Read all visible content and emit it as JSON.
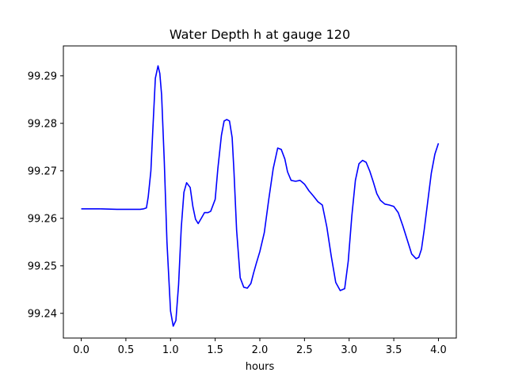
{
  "chart_data": {
    "type": "line",
    "title": "Water Depth h at gauge 120",
    "xlabel": "hours",
    "ylabel": "",
    "xlim": [
      -0.2,
      4.2
    ],
    "ylim": [
      99.2348,
      99.2963
    ],
    "grid": false,
    "xticks": [
      0.0,
      0.5,
      1.0,
      1.5,
      2.0,
      2.5,
      3.0,
      3.5,
      4.0
    ],
    "xtick_labels": [
      "0.0",
      "0.5",
      "1.0",
      "1.5",
      "2.0",
      "2.5",
      "3.0",
      "3.5",
      "4.0"
    ],
    "yticks": [
      99.24,
      99.25,
      99.26,
      99.27,
      99.28,
      99.29
    ],
    "ytick_labels": [
      "99.24",
      "99.25",
      "99.26",
      "99.27",
      "99.28",
      "99.29"
    ],
    "series": [
      {
        "color": "#0000ff",
        "x": [
          0.0,
          0.2,
          0.4,
          0.6,
          0.66,
          0.7,
          0.73,
          0.75,
          0.78,
          0.8,
          0.83,
          0.86,
          0.88,
          0.9,
          0.93,
          0.96,
          1.0,
          1.03,
          1.06,
          1.09,
          1.12,
          1.15,
          1.18,
          1.22,
          1.25,
          1.28,
          1.31,
          1.35,
          1.38,
          1.42,
          1.45,
          1.5,
          1.53,
          1.57,
          1.6,
          1.63,
          1.66,
          1.69,
          1.71,
          1.74,
          1.78,
          1.82,
          1.86,
          1.9,
          1.93,
          1.96,
          2.0,
          2.05,
          2.1,
          2.15,
          2.2,
          2.24,
          2.28,
          2.31,
          2.35,
          2.4,
          2.45,
          2.5,
          2.55,
          2.6,
          2.65,
          2.7,
          2.75,
          2.8,
          2.85,
          2.9,
          2.95,
          2.99,
          3.03,
          3.07,
          3.11,
          3.15,
          3.19,
          3.23,
          3.27,
          3.31,
          3.35,
          3.4,
          3.45,
          3.5,
          3.55,
          3.6,
          3.65,
          3.7,
          3.75,
          3.78,
          3.81,
          3.84,
          3.88,
          3.92,
          3.96,
          4.0
        ],
        "y": [
          99.262,
          99.262,
          99.2619,
          99.2619,
          99.2619,
          99.262,
          99.2622,
          99.2645,
          99.27,
          99.278,
          99.2895,
          99.2921,
          99.2905,
          99.286,
          99.272,
          99.255,
          99.2405,
          99.2373,
          99.2385,
          99.246,
          99.258,
          99.2655,
          99.2675,
          99.2665,
          99.2625,
          99.2598,
          99.2589,
          99.2602,
          99.2612,
          99.2612,
          99.2615,
          99.264,
          99.2705,
          99.2775,
          99.2805,
          99.2808,
          99.2805,
          99.277,
          99.27,
          99.2575,
          99.2475,
          99.2455,
          99.2453,
          99.2463,
          99.2485,
          99.2505,
          99.253,
          99.257,
          99.264,
          99.2705,
          99.2748,
          99.2745,
          99.2725,
          99.2698,
          99.268,
          99.2678,
          99.268,
          99.2672,
          99.2658,
          99.2647,
          99.2635,
          99.2628,
          99.2582,
          99.252,
          99.2465,
          99.2448,
          99.2452,
          99.251,
          99.2605,
          99.268,
          99.2715,
          99.2722,
          99.2718,
          99.27,
          99.2677,
          99.2652,
          99.2638,
          99.263,
          99.2628,
          99.2625,
          99.2612,
          99.2585,
          99.2555,
          99.2525,
          99.2515,
          99.2518,
          99.2535,
          99.2575,
          99.2635,
          99.2695,
          99.2735,
          99.2758
        ]
      }
    ]
  }
}
